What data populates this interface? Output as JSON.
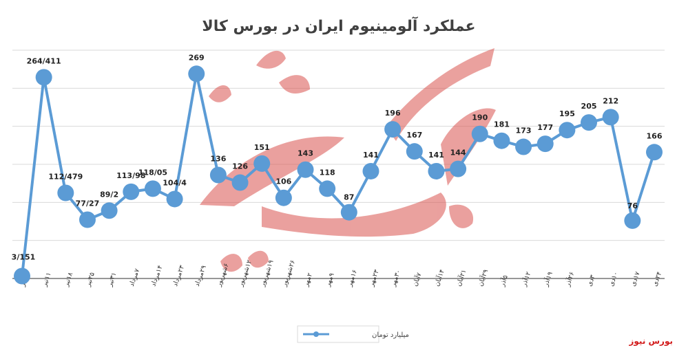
{
  "chart_data": {
    "type": "line",
    "title": "عملکرد آلومینیوم ایران در بورس کالا",
    "categories": [
      "۴تیر",
      "۱۱تیر",
      "۱۸تیر",
      "۲۵تیر",
      "۳۱تیر",
      "۷مرداد",
      "۱۴مرداد",
      "۲۳مرداد",
      "۲۹مرداد",
      "۶شهریور",
      "۱۲شهریور",
      "۱۹شهریور",
      "۲۶شهریور",
      "۲مهر",
      "۹مهر",
      "۱۶مهر",
      "۲۳مهر",
      "۳۰مهر",
      "۷آبان",
      "۱۴آبان",
      "۲۱آبان",
      "۲۹آبان",
      "۵آذر",
      "۱۲آذر",
      "۱۹آذر",
      "۲۶آذر",
      "۳دی",
      "۱۰دی",
      "۱۷دی",
      "۲۴دی"
    ],
    "series": [
      {
        "name": "میلیارد تومان",
        "values": [
          3.151,
          264.411,
          112.479,
          77.27,
          89.2,
          113.98,
          118.05,
          104.4,
          269,
          136,
          126,
          151,
          106,
          143,
          118,
          87,
          141,
          196,
          167,
          141,
          144,
          190,
          181,
          173,
          177,
          195,
          205,
          212,
          76,
          166
        ],
        "labels": [
          "3/151",
          "264/411",
          "112/479",
          "77/27",
          "89/2",
          "113/98",
          "118/05",
          "104/4",
          "269",
          "136",
          "126",
          "151",
          "106",
          "143",
          "118",
          "87",
          "141",
          "196",
          "167",
          "141",
          "144",
          "190",
          "181",
          "173",
          "177",
          "195",
          "205",
          "212",
          "76",
          "166"
        ]
      }
    ],
    "ylim": [
      0,
      300
    ],
    "grid": true,
    "legend": "bottom-center",
    "colors": {
      "line": "#5b9bd5",
      "grid": "#d9d9d9",
      "axis": "#595959"
    }
  },
  "brand": "بورس نیوز"
}
